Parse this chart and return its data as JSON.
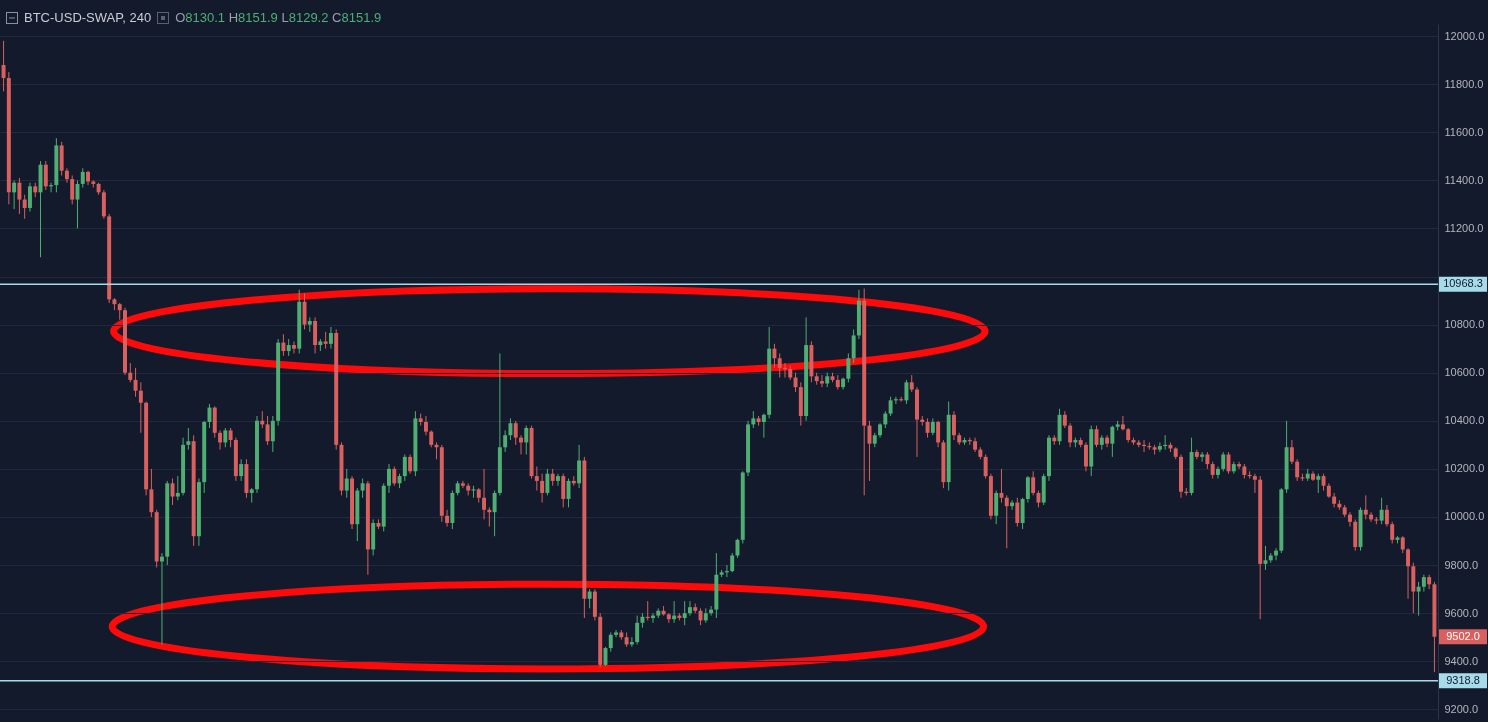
{
  "chart_data": {
    "type": "candlestick",
    "title": "BTC-USD-SWAP, 240",
    "annotations": [
      "O8130.1 H8151.9 L8129.2 C8151.9",
      "9502.0"
    ],
    "categories": [
      null,
      null,
      null,
      null,
      null,
      null,
      null,
      null,
      null,
      null,
      null,
      null,
      null,
      null,
      null,
      null,
      null,
      null,
      null,
      null,
      null,
      null,
      null,
      null,
      null,
      null,
      null,
      null,
      null,
      null,
      null,
      null,
      null,
      null,
      null,
      null,
      null,
      null,
      null,
      null,
      null,
      null,
      null,
      null,
      null,
      null,
      null,
      null,
      null,
      null,
      null,
      null,
      null,
      null,
      null,
      null,
      null,
      null,
      null,
      null,
      null,
      null,
      null,
      null,
      null,
      null,
      null,
      null,
      null,
      null,
      null,
      null,
      null,
      null,
      null,
      null,
      null,
      null,
      null,
      null,
      null,
      null,
      null,
      null,
      null,
      null,
      null,
      null,
      null,
      null,
      null,
      null,
      null,
      null,
      null,
      null,
      null,
      null,
      null,
      null,
      null,
      null,
      null,
      null,
      null,
      null,
      null,
      null,
      null,
      null,
      null,
      null,
      null,
      null,
      null,
      null,
      null,
      null,
      null,
      null,
      null,
      null,
      null,
      null,
      null,
      null,
      null,
      null,
      null,
      null,
      null,
      null,
      null,
      null,
      null,
      null,
      null,
      null,
      null,
      null,
      null,
      null,
      null,
      null,
      null,
      null,
      null,
      null,
      null,
      null,
      null,
      null,
      null,
      null,
      null,
      null,
      null,
      null,
      null,
      null,
      null,
      null,
      null,
      null,
      null,
      null,
      null,
      null,
      null,
      null,
      null,
      null,
      null,
      null,
      null,
      null,
      null,
      null,
      null,
      null,
      null,
      null,
      null,
      null,
      null,
      null,
      null,
      null,
      null,
      null,
      null,
      null,
      null,
      null,
      null,
      null,
      null,
      null,
      null,
      null,
      null,
      null,
      null,
      null,
      null,
      null,
      null,
      null,
      null,
      null,
      null,
      null,
      null,
      null,
      null,
      null,
      null,
      null,
      null,
      null,
      null,
      null,
      null,
      null,
      null,
      null,
      null,
      null,
      null,
      null,
      null,
      null,
      null,
      null,
      null,
      null,
      null,
      null,
      null,
      null,
      null,
      null,
      null,
      null,
      null,
      null,
      null,
      null,
      null,
      null,
      null,
      null,
      null,
      null,
      null,
      null,
      null,
      null,
      null,
      null,
      null,
      null,
      null,
      null,
      null,
      null,
      null,
      null,
      null,
      null,
      null,
      null
    ],
    "ohlc": [
      [
        11880,
        11980,
        11770,
        11825
      ],
      [
        11825,
        11850,
        11300,
        11350
      ],
      [
        11350,
        11400,
        11280,
        11390
      ],
      [
        11390,
        11410,
        11260,
        11320
      ],
      [
        11320,
        11340,
        11240,
        11285
      ],
      [
        11285,
        11390,
        11270,
        11375
      ],
      [
        11375,
        11390,
        11330,
        11350
      ],
      [
        11350,
        11480,
        11080,
        11465
      ],
      [
        11465,
        11480,
        11360,
        11375
      ],
      [
        11375,
        11390,
        11350,
        11380
      ],
      [
        11380,
        11575,
        11350,
        11545
      ],
      [
        11545,
        11560,
        11420,
        11440
      ],
      [
        11440,
        11450,
        11390,
        11405
      ],
      [
        11405,
        11420,
        11300,
        11320
      ],
      [
        11320,
        11400,
        11200,
        11385
      ],
      [
        11385,
        11450,
        11370,
        11435
      ],
      [
        11435,
        11440,
        11380,
        11395
      ],
      [
        11395,
        11400,
        11370,
        11385
      ],
      [
        11385,
        11390,
        11340,
        11350
      ],
      [
        11350,
        11360,
        11240,
        11250
      ],
      [
        11250,
        11260,
        10890,
        10905
      ],
      [
        10905,
        10910,
        10860,
        10885
      ],
      [
        10885,
        10890,
        10820,
        10860
      ],
      [
        10860,
        10870,
        10590,
        10600
      ],
      [
        10600,
        10640,
        10560,
        10570
      ],
      [
        10570,
        10620,
        10500,
        10525
      ],
      [
        10525,
        10560,
        10350,
        10475
      ],
      [
        10475,
        10480,
        10090,
        10115
      ],
      [
        10115,
        10200,
        10000,
        10020
      ],
      [
        10020,
        10030,
        9790,
        9815
      ],
      [
        9815,
        9850,
        9470,
        9835
      ],
      [
        9835,
        10150,
        9800,
        10140
      ],
      [
        10140,
        10160,
        10050,
        10085
      ],
      [
        10085,
        10170,
        10070,
        10100
      ],
      [
        10100,
        10330,
        10090,
        10300
      ],
      [
        10300,
        10370,
        10280,
        10315
      ],
      [
        10315,
        10340,
        9880,
        9920
      ],
      [
        9920,
        10160,
        9880,
        10145
      ],
      [
        10145,
        10400,
        10100,
        10395
      ],
      [
        10395,
        10470,
        10370,
        10455
      ],
      [
        10455,
        10460,
        10330,
        10350
      ],
      [
        10350,
        10360,
        10280,
        10310
      ],
      [
        10310,
        10370,
        10290,
        10360
      ],
      [
        10360,
        10370,
        10290,
        10320
      ],
      [
        10320,
        10330,
        10150,
        10170
      ],
      [
        10170,
        10240,
        10150,
        10220
      ],
      [
        10220,
        10240,
        10080,
        10100
      ],
      [
        10100,
        10120,
        10060,
        10115
      ],
      [
        10115,
        10420,
        10100,
        10400
      ],
      [
        10400,
        10440,
        10370,
        10385
      ],
      [
        10385,
        10420,
        10300,
        10315
      ],
      [
        10315,
        10420,
        10270,
        10400
      ],
      [
        10400,
        10740,
        10380,
        10725
      ],
      [
        10725,
        10760,
        10670,
        10690
      ],
      [
        10690,
        10740,
        10670,
        10715
      ],
      [
        10715,
        10730,
        10680,
        10700
      ],
      [
        10700,
        10945,
        10680,
        10895
      ],
      [
        10895,
        10930,
        10780,
        10800
      ],
      [
        10800,
        10830,
        10770,
        10815
      ],
      [
        10815,
        10830,
        10680,
        10715
      ],
      [
        10715,
        10740,
        10690,
        10730
      ],
      [
        10730,
        10770,
        10700,
        10720
      ],
      [
        10720,
        10790,
        10700,
        10765
      ],
      [
        10765,
        10780,
        10280,
        10300
      ],
      [
        10300,
        10310,
        10090,
        10110
      ],
      [
        10110,
        10200,
        10080,
        10160
      ],
      [
        10160,
        10170,
        9950,
        9970
      ],
      [
        9970,
        10120,
        9900,
        10110
      ],
      [
        10110,
        10160,
        10080,
        10140
      ],
      [
        10140,
        10150,
        9760,
        9865
      ],
      [
        9865,
        9990,
        9840,
        9975
      ],
      [
        9975,
        9990,
        9950,
        9960
      ],
      [
        9960,
        10140,
        9940,
        10130
      ],
      [
        10130,
        10220,
        10100,
        10200
      ],
      [
        10200,
        10210,
        10130,
        10140
      ],
      [
        10140,
        10180,
        10120,
        10170
      ],
      [
        10170,
        10260,
        10150,
        10250
      ],
      [
        10250,
        10260,
        10180,
        10190
      ],
      [
        10190,
        10440,
        10170,
        10410
      ],
      [
        10410,
        10430,
        10380,
        10395
      ],
      [
        10395,
        10420,
        10340,
        10355
      ],
      [
        10355,
        10360,
        10290,
        10300
      ],
      [
        10300,
        10310,
        10240,
        10290
      ],
      [
        10290,
        10300,
        9980,
        10005
      ],
      [
        10005,
        10030,
        9960,
        9975
      ],
      [
        9975,
        10110,
        9950,
        10100
      ],
      [
        10100,
        10150,
        10090,
        10140
      ],
      [
        10140,
        10150,
        10120,
        10130
      ],
      [
        10130,
        10140,
        10090,
        10110
      ],
      [
        10110,
        10130,
        10080,
        10115
      ],
      [
        10115,
        10120,
        10060,
        10080
      ],
      [
        10080,
        10200,
        9990,
        10030
      ],
      [
        10030,
        10040,
        9960,
        10020
      ],
      [
        10020,
        10110,
        9920,
        10100
      ],
      [
        10100,
        10680,
        10090,
        10290
      ],
      [
        10290,
        10360,
        10270,
        10340
      ],
      [
        10340,
        10410,
        10320,
        10390
      ],
      [
        10390,
        10400,
        10300,
        10330
      ],
      [
        10330,
        10340,
        10260,
        10310
      ],
      [
        10310,
        10380,
        10260,
        10370
      ],
      [
        10370,
        10380,
        10160,
        10170
      ],
      [
        10170,
        10210,
        10110,
        10150
      ],
      [
        10150,
        10180,
        10060,
        10100
      ],
      [
        10100,
        10200,
        10090,
        10180
      ],
      [
        10180,
        10200,
        10130,
        10150
      ],
      [
        10150,
        10180,
        10130,
        10170
      ],
      [
        10170,
        10180,
        10040,
        10075
      ],
      [
        10075,
        10160,
        10040,
        10150
      ],
      [
        10150,
        10170,
        10130,
        10140
      ],
      [
        10140,
        10300,
        10120,
        10235
      ],
      [
        10235,
        10250,
        9580,
        9660
      ],
      [
        9660,
        9700,
        9620,
        9690
      ],
      [
        9690,
        9700,
        9570,
        9585
      ],
      [
        9585,
        9600,
        9375,
        9385
      ],
      [
        9385,
        9460,
        9380,
        9455
      ],
      [
        9455,
        9520,
        9440,
        9510
      ],
      [
        9510,
        9530,
        9500,
        9520
      ],
      [
        9520,
        9530,
        9490,
        9500
      ],
      [
        9500,
        9520,
        9460,
        9470
      ],
      [
        9470,
        9500,
        9460,
        9480
      ],
      [
        9480,
        9590,
        9470,
        9560
      ],
      [
        9560,
        9600,
        9540,
        9585
      ],
      [
        9585,
        9650,
        9570,
        9580
      ],
      [
        9580,
        9600,
        9560,
        9590
      ],
      [
        9590,
        9620,
        9580,
        9610
      ],
      [
        9610,
        9630,
        9590,
        9595
      ],
      [
        9595,
        9600,
        9560,
        9575
      ],
      [
        9575,
        9650,
        9560,
        9590
      ],
      [
        9590,
        9600,
        9570,
        9580
      ],
      [
        9580,
        9650,
        9550,
        9600
      ],
      [
        9600,
        9650,
        9590,
        9625
      ],
      [
        9625,
        9640,
        9600,
        9610
      ],
      [
        9610,
        9620,
        9550,
        9570
      ],
      [
        9570,
        9620,
        9560,
        9600
      ],
      [
        9600,
        9630,
        9590,
        9615
      ],
      [
        9615,
        9850,
        9580,
        9760
      ],
      [
        9760,
        9780,
        9750,
        9770
      ],
      [
        9770,
        9800,
        9750,
        9775
      ],
      [
        9775,
        9850,
        9770,
        9840
      ],
      [
        9840,
        9910,
        9830,
        9905
      ],
      [
        9905,
        10190,
        9890,
        10185
      ],
      [
        10185,
        10400,
        10170,
        10385
      ],
      [
        10385,
        10440,
        10370,
        10410
      ],
      [
        10410,
        10420,
        10380,
        10395
      ],
      [
        10395,
        10430,
        10330,
        10425
      ],
      [
        10425,
        10790,
        10410,
        10700
      ],
      [
        10700,
        10720,
        10620,
        10660
      ],
      [
        10660,
        10680,
        10580,
        10620
      ],
      [
        10620,
        10640,
        10580,
        10615
      ],
      [
        10615,
        10630,
        10570,
        10580
      ],
      [
        10580,
        10600,
        10520,
        10540
      ],
      [
        10540,
        10560,
        10380,
        10420
      ],
      [
        10420,
        10830,
        10400,
        10715
      ],
      [
        10715,
        10730,
        10560,
        10585
      ],
      [
        10585,
        10600,
        10550,
        10565
      ],
      [
        10565,
        10590,
        10540,
        10555
      ],
      [
        10555,
        10600,
        10540,
        10585
      ],
      [
        10585,
        10600,
        10560,
        10570
      ],
      [
        10570,
        10590,
        10530,
        10540
      ],
      [
        10540,
        10580,
        10530,
        10575
      ],
      [
        10575,
        10680,
        10560,
        10660
      ],
      [
        10660,
        10780,
        10640,
        10755
      ],
      [
        10755,
        10945,
        10740,
        10900
      ],
      [
        10900,
        10950,
        10090,
        10380
      ],
      [
        10380,
        10400,
        10150,
        10305
      ],
      [
        10305,
        10350,
        10290,
        10340
      ],
      [
        10340,
        10390,
        10330,
        10385
      ],
      [
        10385,
        10440,
        10370,
        10430
      ],
      [
        10430,
        10500,
        10420,
        10485
      ],
      [
        10485,
        10500,
        10470,
        10490
      ],
      [
        10490,
        10500,
        10480,
        10485
      ],
      [
        10485,
        10570,
        10470,
        10560
      ],
      [
        10560,
        10590,
        10520,
        10530
      ],
      [
        10530,
        10540,
        10250,
        10405
      ],
      [
        10405,
        10420,
        10380,
        10395
      ],
      [
        10395,
        10410,
        10330,
        10350
      ],
      [
        10350,
        10410,
        10340,
        10395
      ],
      [
        10395,
        10400,
        10290,
        10310
      ],
      [
        10310,
        10320,
        10120,
        10145
      ],
      [
        10145,
        10480,
        10110,
        10425
      ],
      [
        10425,
        10440,
        10320,
        10340
      ],
      [
        10340,
        10350,
        10300,
        10310
      ],
      [
        10310,
        10330,
        10300,
        10320
      ],
      [
        10320,
        10330,
        10300,
        10315
      ],
      [
        10315,
        10330,
        10270,
        10280
      ],
      [
        10280,
        10290,
        10240,
        10250
      ],
      [
        10250,
        10260,
        10160,
        10170
      ],
      [
        10170,
        10180,
        9990,
        10005
      ],
      [
        10005,
        10110,
        9970,
        10100
      ],
      [
        10100,
        10200,
        10060,
        10080
      ],
      [
        10080,
        10090,
        9870,
        10045
      ],
      [
        10045,
        10070,
        10030,
        10060
      ],
      [
        10060,
        10080,
        9960,
        9975
      ],
      [
        9975,
        10080,
        9950,
        10075
      ],
      [
        10075,
        10170,
        10060,
        10165
      ],
      [
        10165,
        10190,
        10090,
        10100
      ],
      [
        10100,
        10110,
        10040,
        10060
      ],
      [
        10060,
        10180,
        10050,
        10170
      ],
      [
        10170,
        10340,
        10150,
        10330
      ],
      [
        10330,
        10340,
        10300,
        10315
      ],
      [
        10315,
        10450,
        10300,
        10425
      ],
      [
        10425,
        10440,
        10370,
        10380
      ],
      [
        10380,
        10390,
        10290,
        10310
      ],
      [
        10310,
        10330,
        10290,
        10320
      ],
      [
        10320,
        10330,
        10290,
        10300
      ],
      [
        10300,
        10310,
        10190,
        10210
      ],
      [
        10210,
        10380,
        10170,
        10365
      ],
      [
        10365,
        10380,
        10290,
        10300
      ],
      [
        10300,
        10340,
        10280,
        10330
      ],
      [
        10330,
        10340,
        10290,
        10305
      ],
      [
        10305,
        10380,
        10250,
        10375
      ],
      [
        10375,
        10400,
        10360,
        10385
      ],
      [
        10385,
        10420,
        10360,
        10365
      ],
      [
        10365,
        10370,
        10310,
        10320
      ],
      [
        10320,
        10330,
        10300,
        10310
      ],
      [
        10310,
        10320,
        10290,
        10300
      ],
      [
        10300,
        10320,
        10270,
        10295
      ],
      [
        10295,
        10310,
        10280,
        10290
      ],
      [
        10290,
        10300,
        10260,
        10280
      ],
      [
        10280,
        10310,
        10270,
        10295
      ],
      [
        10295,
        10340,
        10280,
        10300
      ],
      [
        10300,
        10310,
        10270,
        10285
      ],
      [
        10285,
        10290,
        10240,
        10250
      ],
      [
        10250,
        10260,
        10080,
        10105
      ],
      [
        10105,
        10120,
        10090,
        10100
      ],
      [
        10100,
        10330,
        10090,
        10270
      ],
      [
        10270,
        10280,
        10240,
        10250
      ],
      [
        10250,
        10270,
        10230,
        10260
      ],
      [
        10260,
        10270,
        10200,
        10220
      ],
      [
        10220,
        10230,
        10160,
        10175
      ],
      [
        10175,
        10210,
        10160,
        10200
      ],
      [
        10200,
        10270,
        10190,
        10260
      ],
      [
        10260,
        10270,
        10180,
        10190
      ],
      [
        10190,
        10230,
        10180,
        10220
      ],
      [
        10220,
        10230,
        10200,
        10210
      ],
      [
        10210,
        10220,
        10160,
        10175
      ],
      [
        10175,
        10190,
        10160,
        10170
      ],
      [
        10170,
        10180,
        10100,
        10155
      ],
      [
        10155,
        10170,
        9575,
        9805
      ],
      [
        9805,
        9880,
        9780,
        9820
      ],
      [
        9820,
        9850,
        9810,
        9840
      ],
      [
        9840,
        9870,
        9820,
        9860
      ],
      [
        9860,
        10120,
        9850,
        10115
      ],
      [
        10115,
        10400,
        10100,
        10290
      ],
      [
        10290,
        10320,
        10220,
        10230
      ],
      [
        10230,
        10240,
        10150,
        10165
      ],
      [
        10165,
        10180,
        10150,
        10160
      ],
      [
        10160,
        10200,
        10150,
        10180
      ],
      [
        10180,
        10190,
        10150,
        10155
      ],
      [
        10155,
        10180,
        10100,
        10170
      ],
      [
        10170,
        10180,
        10110,
        10130
      ],
      [
        10130,
        10140,
        10080,
        10085
      ],
      [
        10085,
        10100,
        10040,
        10055
      ],
      [
        10055,
        10070,
        10030,
        10040
      ],
      [
        10040,
        10050,
        10000,
        10010
      ],
      [
        10010,
        10020,
        9960,
        9980
      ],
      [
        9980,
        9990,
        9860,
        9875
      ],
      [
        9875,
        10040,
        9860,
        10030
      ],
      [
        10030,
        10090,
        9990,
        10010
      ],
      [
        10010,
        10020,
        9980,
        9990
      ],
      [
        9990,
        10000,
        9970,
        9985
      ],
      [
        9985,
        10080,
        9970,
        10030
      ],
      [
        10030,
        10050,
        9960,
        9970
      ],
      [
        9970,
        9980,
        9890,
        9905
      ],
      [
        9905,
        9920,
        9890,
        9915
      ],
      [
        9915,
        9920,
        9850,
        9865
      ],
      [
        9865,
        9870,
        9660,
        9795
      ],
      [
        9795,
        9810,
        9600,
        9690
      ],
      [
        9690,
        9730,
        9590,
        9710
      ],
      [
        9710,
        9760,
        9690,
        9750
      ],
      [
        9750,
        9760,
        9700,
        9720
      ],
      [
        9720,
        9730,
        9355,
        9502
      ]
    ],
    "ylim": [
      9160,
      12050
    ],
    "yticks": [
      {
        "value": 9200,
        "label": "9200.0"
      },
      {
        "value": 9400,
        "label": "9400.0"
      },
      {
        "value": 9600,
        "label": "9600.0"
      },
      {
        "value": 9800,
        "label": "9800.0"
      },
      {
        "value": 10000,
        "label": "10000.0"
      },
      {
        "value": 10200,
        "label": "10200.0"
      },
      {
        "value": 10400,
        "label": "10400.0"
      },
      {
        "value": 10600,
        "label": "10600.0"
      },
      {
        "value": 10800,
        "label": "10800.0"
      },
      {
        "value": 11000,
        "label": null
      },
      {
        "value": 11200,
        "label": "11200.0"
      },
      {
        "value": 11400,
        "label": "11400.0"
      },
      {
        "value": 11600,
        "label": "11600.0"
      },
      {
        "value": 11800,
        "label": "11800.0"
      },
      {
        "value": 12000,
        "label": "12000.0"
      }
    ],
    "ref_lines": [
      {
        "axis": "y",
        "value": 10968.3,
        "label": "10968.3",
        "color": "#a6dcea"
      },
      {
        "axis": "y",
        "value": 9318.8,
        "label": "9318.8",
        "color": "#a6dcea"
      }
    ],
    "grid": "y",
    "tick_labels": "y"
  }
}
